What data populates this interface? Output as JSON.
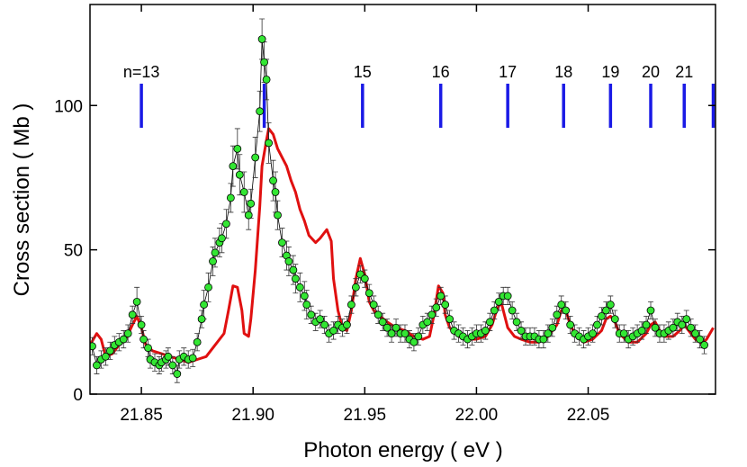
{
  "chart_data": {
    "type": "scatter",
    "x_label": "Photon energy  ( eV )",
    "y_label": "Cross section  ( Mb )",
    "xlim": [
      21.827,
      22.107
    ],
    "ylim": [
      0,
      135
    ],
    "xticks": [
      21.85,
      {
        "value": 21.9,
        "label": "21.90"
      },
      21.95,
      {
        "value": 22,
        "label": "22.00"
      },
      22.05
    ],
    "yticks": [
      0,
      50,
      100
    ],
    "series": [
      {
        "type": "scatter",
        "color": "#33e633",
        "line_color": "#000000",
        "x": [
          21.828,
          21.83,
          21.832,
          21.834,
          21.836,
          21.838,
          21.84,
          21.842,
          21.844,
          21.846,
          21.848,
          21.85,
          21.851,
          21.853,
          21.854,
          21.856,
          21.858,
          21.859,
          21.861,
          21.862,
          21.864,
          21.866,
          21.867,
          21.869,
          21.871,
          21.873,
          21.875,
          21.877,
          21.878,
          21.88,
          21.882,
          21.883,
          21.885,
          21.886,
          21.888,
          21.89,
          21.891,
          21.893,
          21.894,
          21.896,
          21.898,
          21.899,
          21.901,
          21.903,
          21.904,
          21.905,
          21.906,
          21.907,
          21.909,
          21.91,
          21.911,
          21.913,
          21.915,
          21.916,
          21.918,
          21.919,
          21.921,
          21.923,
          21.924,
          21.926,
          21.928,
          21.93,
          21.932,
          21.934,
          21.936,
          21.938,
          21.94,
          21.942,
          21.944,
          21.946,
          21.948,
          21.95,
          21.952,
          21.954,
          21.956,
          21.958,
          21.96,
          21.962,
          21.964,
          21.966,
          21.968,
          21.97,
          21.972,
          21.974,
          21.976,
          21.978,
          21.98,
          21.982,
          21.984,
          21.986,
          21.988,
          21.99,
          21.992,
          21.994,
          21.996,
          21.998,
          22.0,
          22.002,
          22.004,
          22.006,
          22.008,
          22.01,
          22.012,
          22.014,
          22.016,
          22.018,
          22.02,
          22.022,
          22.024,
          22.026,
          22.028,
          22.03,
          22.032,
          22.034,
          22.036,
          22.038,
          22.04,
          22.042,
          22.044,
          22.046,
          22.048,
          22.05,
          22.052,
          22.054,
          22.056,
          22.058,
          22.06,
          22.062,
          22.064,
          22.066,
          22.068,
          22.07,
          22.072,
          22.074,
          22.076,
          22.078,
          22.08,
          22.082,
          22.084,
          22.086,
          22.088,
          22.09,
          22.092,
          22.094,
          22.096,
          22.098,
          22.1,
          22.102
        ],
        "values": [
          16.6,
          10,
          12,
          13,
          15,
          17,
          18,
          19,
          21,
          27.5,
          32,
          24,
          19,
          16,
          12,
          11,
          10,
          11,
          12,
          13,
          10,
          7,
          12,
          13,
          12,
          12.5,
          18,
          26,
          31,
          37,
          46,
          49,
          52.5,
          54,
          59,
          68,
          79,
          85,
          76,
          70,
          62,
          66,
          82,
          98,
          123,
          115,
          109,
          87,
          74,
          70,
          62,
          52.5,
          48,
          46,
          43,
          40,
          37,
          34,
          31,
          27.5,
          25,
          26,
          24,
          21,
          22,
          24,
          23,
          24,
          31,
          37,
          41.5,
          40,
          35,
          31,
          27.5,
          25,
          23,
          21,
          23,
          21,
          21,
          19,
          18,
          20,
          24,
          25,
          27.5,
          30,
          34,
          31,
          26,
          22,
          21,
          20,
          19,
          20,
          21,
          21,
          22,
          25,
          29,
          32,
          34,
          34,
          29,
          25,
          22,
          20,
          20,
          20,
          19,
          19,
          21,
          23,
          27.5,
          31,
          29,
          24,
          21,
          20,
          19,
          20,
          21,
          24,
          27,
          29,
          31,
          26,
          21,
          21,
          19,
          20,
          21,
          22,
          24,
          29,
          23,
          21,
          21,
          22,
          23,
          25,
          24,
          26,
          23,
          21,
          19,
          17
        ],
        "errors": [
          3,
          3,
          3,
          3,
          3,
          3,
          3,
          3,
          3,
          3,
          5,
          3,
          3,
          3,
          3,
          3,
          3,
          3,
          3,
          3,
          3,
          3,
          3,
          3,
          3,
          3,
          3,
          3,
          5,
          5,
          5,
          5,
          5,
          5,
          5,
          5,
          7,
          7,
          7,
          7,
          5,
          5,
          7,
          7,
          7,
          7,
          7,
          7,
          7,
          7,
          5,
          5,
          5,
          5,
          5,
          5,
          5,
          5,
          5,
          3,
          3,
          3,
          3,
          3,
          3,
          3,
          3,
          3,
          3,
          3,
          3,
          3,
          3,
          3,
          3,
          3,
          3,
          3,
          3,
          3,
          3,
          3,
          3,
          3,
          3,
          3,
          3,
          3,
          3,
          3,
          3,
          3,
          3,
          3,
          3,
          3,
          3,
          3,
          3,
          3,
          3,
          3,
          3,
          3,
          3,
          3,
          3,
          3,
          3,
          3,
          3,
          3,
          3,
          3,
          3,
          3,
          3,
          3,
          3,
          3,
          3,
          3,
          3,
          3,
          3,
          3,
          3,
          3,
          3,
          3,
          3,
          3,
          3,
          3,
          3,
          3,
          3,
          3,
          3,
          3,
          3,
          3,
          3,
          3,
          3,
          3,
          3,
          3
        ]
      },
      {
        "type": "line",
        "color": "#e01010",
        "x": [
          21.827,
          21.83,
          21.832,
          21.834,
          21.837,
          21.84,
          21.843,
          21.846,
          21.848,
          21.85,
          21.852,
          21.855,
          21.859,
          21.863,
          21.867,
          21.871,
          21.875,
          21.879,
          21.883,
          21.887,
          21.889,
          21.891,
          21.893,
          21.895,
          21.896,
          21.898,
          21.899,
          21.901,
          21.903,
          21.904,
          21.906,
          21.907,
          21.909,
          21.911,
          21.913,
          21.915,
          21.917,
          21.919,
          21.921,
          21.923,
          21.925,
          21.928,
          21.93,
          21.932,
          21.933,
          21.935,
          21.936,
          21.938,
          21.94,
          21.942,
          21.944,
          21.946,
          21.948,
          21.95,
          21.952,
          21.954,
          21.956,
          21.96,
          21.964,
          21.968,
          21.972,
          21.976,
          21.979,
          21.981,
          21.983,
          21.985,
          21.986,
          21.988,
          21.992,
          21.996,
          22.0,
          22.004,
          22.007,
          22.009,
          22.011,
          22.012,
          22.014,
          22.017,
          22.02,
          22.024,
          22.028,
          22.032,
          22.036,
          22.038,
          22.04,
          22.042,
          22.044,
          22.048,
          22.052,
          22.056,
          22.058,
          22.06,
          22.062,
          22.064,
          22.068,
          22.072,
          22.076,
          22.078,
          22.08,
          22.082,
          22.084,
          22.088,
          22.091,
          22.093,
          22.095,
          22.098,
          22.101,
          22.103,
          22.106
        ],
        "values": [
          17,
          21,
          19,
          13,
          14,
          17,
          19,
          24,
          27,
          23,
          17,
          15,
          14,
          13,
          12,
          11,
          12,
          13,
          17,
          21,
          29,
          37.5,
          37,
          29,
          21,
          20,
          26,
          43,
          65,
          79,
          88,
          92,
          90,
          85,
          82,
          79,
          74,
          70,
          64,
          60,
          55,
          52.5,
          54,
          56,
          57,
          53,
          40,
          29,
          23,
          22,
          29,
          40,
          47,
          41.5,
          32,
          29,
          27.5,
          25,
          23,
          22,
          20,
          19,
          20,
          27.5,
          37.5,
          35,
          27.5,
          23,
          20,
          19,
          19,
          20,
          24,
          29,
          32,
          29,
          23,
          20,
          19,
          18,
          18,
          20,
          24,
          29,
          29,
          24,
          21,
          18,
          19,
          22,
          26,
          27,
          25,
          21,
          18,
          18,
          21,
          24,
          25,
          22,
          20,
          20,
          22,
          24,
          22,
          19,
          17.5,
          19,
          23
        ]
      }
    ],
    "markers": {
      "color": "#1a1ae6",
      "x": [
        21.85,
        21.905,
        21.949,
        21.984,
        22.014,
        22.039,
        22.06,
        22.078,
        22.093,
        22.106
      ],
      "labels": [
        "n=13",
        null,
        "15",
        "16",
        "17",
        "18",
        "19",
        "20",
        "21",
        null
      ]
    }
  }
}
